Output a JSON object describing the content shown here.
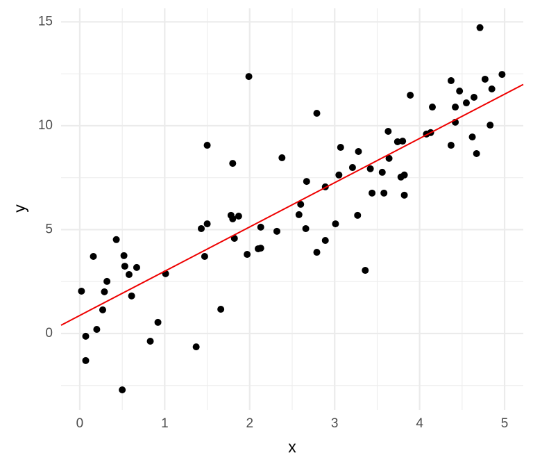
{
  "chart_data": {
    "type": "scatter",
    "x_label": "x",
    "y_label": "y",
    "xlim": [
      -0.22,
      5.22
    ],
    "ylim": [
      -3.68,
      15.65
    ],
    "xticks": [
      0,
      1,
      2,
      3,
      4,
      5
    ],
    "yticks": [
      0,
      5,
      10,
      15
    ],
    "xminor": [
      -0.5,
      0.5,
      1.5,
      2.5,
      3.5,
      4.5
    ],
    "yminor": [
      -2.5,
      2.5,
      7.5,
      12.5
    ],
    "grid": true,
    "point_color": "#000000",
    "fit": {
      "intercept": 0.87,
      "slope": 2.13,
      "color": "#ee0000"
    },
    "x": [
      0.02,
      0.07,
      0.07,
      0.16,
      0.2,
      0.27,
      0.29,
      0.32,
      0.43,
      0.5,
      0.52,
      0.53,
      0.58,
      0.61,
      0.67,
      0.83,
      0.92,
      1.01,
      1.37,
      1.43,
      1.47,
      1.5,
      1.5,
      1.66,
      1.78,
      1.8,
      1.8,
      1.82,
      1.87,
      1.97,
      1.99,
      2.1,
      2.13,
      2.13,
      2.32,
      2.38,
      2.58,
      2.6,
      2.66,
      2.67,
      2.79,
      2.79,
      2.89,
      2.89,
      3.01,
      3.05,
      3.07,
      3.21,
      3.27,
      3.28,
      3.36,
      3.42,
      3.44,
      3.56,
      3.58,
      3.63,
      3.64,
      3.74,
      3.8,
      3.78,
      3.82,
      3.82,
      3.89,
      4.08,
      4.13,
      4.15,
      4.37,
      4.37,
      4.42,
      4.42,
      4.47,
      4.55,
      4.62,
      4.64,
      4.67,
      4.71,
      4.77,
      4.83,
      4.85,
      4.97
    ],
    "y": [
      2.04,
      -0.13,
      -1.3,
      3.71,
      0.2,
      1.14,
      2.01,
      2.51,
      4.52,
      -2.71,
      3.75,
      3.24,
      2.84,
      1.81,
      3.18,
      -0.37,
      0.54,
      2.88,
      -0.64,
      5.05,
      3.71,
      5.28,
      9.06,
      1.17,
      5.69,
      8.19,
      5.52,
      4.58,
      5.65,
      3.81,
      12.37,
      4.08,
      5.12,
      4.11,
      4.92,
      8.46,
      5.72,
      6.22,
      5.05,
      7.32,
      10.6,
      3.91,
      4.48,
      7.06,
      5.28,
      7.63,
      8.96,
      7.99,
      5.69,
      8.76,
      3.04,
      7.93,
      6.76,
      7.76,
      6.76,
      9.73,
      8.43,
      9.23,
      9.26,
      7.53,
      7.63,
      6.66,
      11.47,
      9.6,
      9.67,
      10.9,
      9.06,
      12.17,
      10.9,
      10.17,
      11.67,
      11.1,
      9.46,
      11.37,
      8.66,
      14.72,
      12.24,
      10.03,
      11.77,
      12.47
    ]
  }
}
